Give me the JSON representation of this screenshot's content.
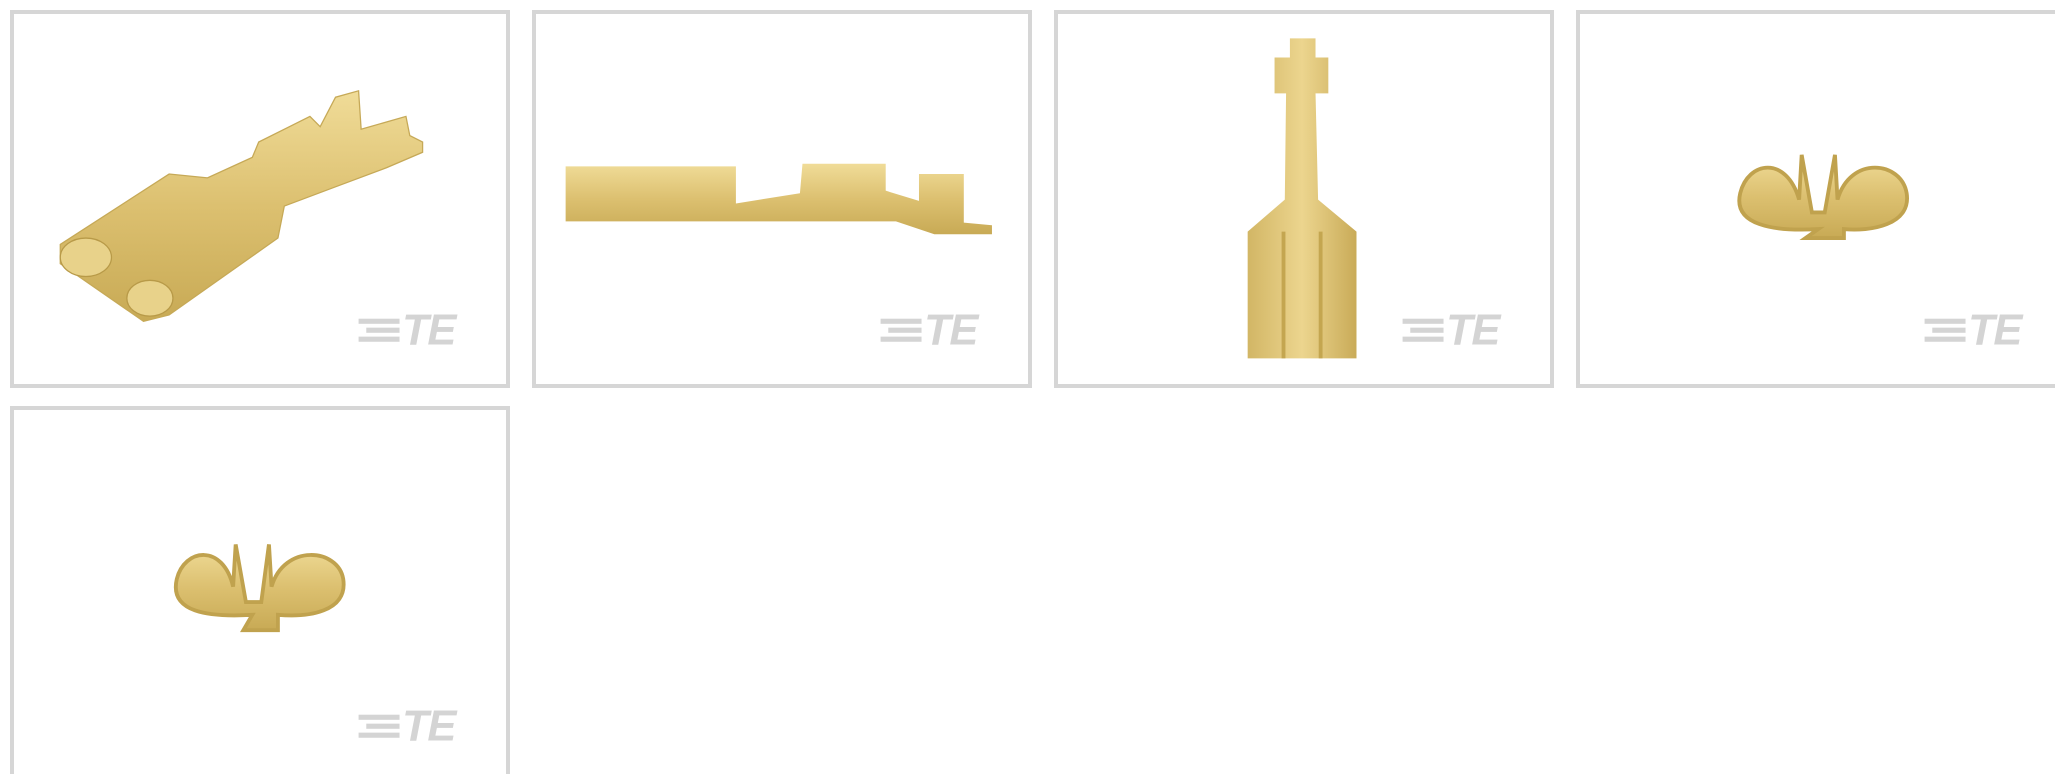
{
  "tiles": [
    {
      "logo": "TE"
    },
    {
      "logo": "TE"
    },
    {
      "logo": "TE"
    },
    {
      "logo": "TE"
    },
    {
      "logo": "TE"
    }
  ]
}
